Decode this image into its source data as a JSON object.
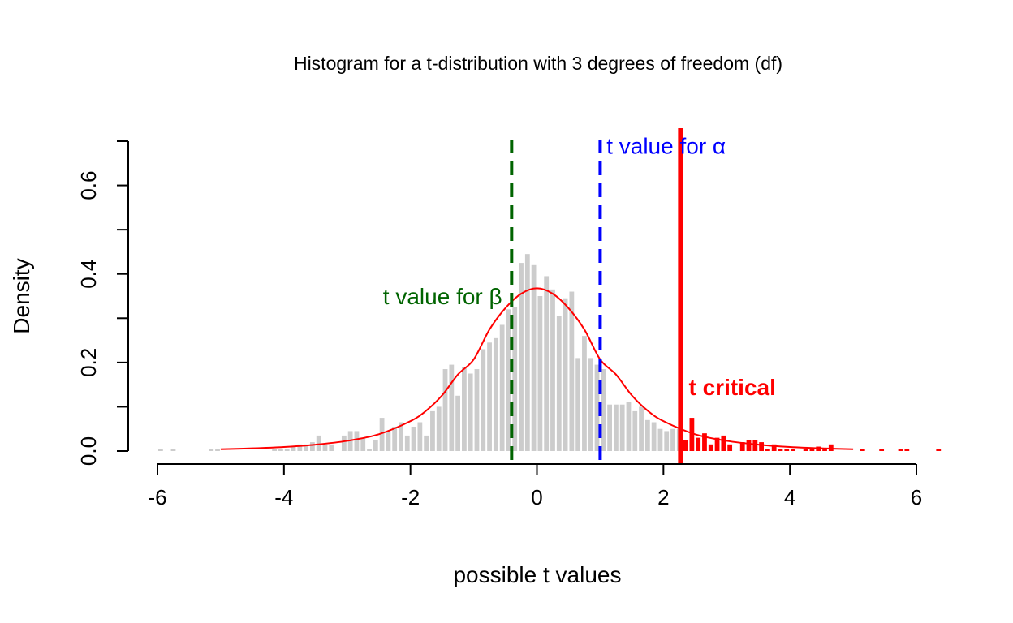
{
  "chart_data": {
    "type": "bar",
    "title": "Histogram for a t-distribution with 3 degrees of freedom (df)",
    "xlabel": "possible t values",
    "ylabel": "Density",
    "xlim": [
      -6.5,
      6.5
    ],
    "ylim": [
      0,
      0.7
    ],
    "xticks": [
      -6,
      -4,
      -2,
      0,
      2,
      4,
      6
    ],
    "xtick_labels": [
      "-6",
      "-4",
      "-2",
      "0",
      "2",
      "4",
      "6"
    ],
    "yticks": [
      0.0,
      0.1,
      0.2,
      0.3,
      0.4,
      0.5,
      0.6,
      0.7
    ],
    "ytick_labels": [
      "0.0",
      "",
      "0.2",
      "",
      "0.4",
      "",
      "0.6",
      ""
    ],
    "grid": false,
    "bin_width": 0.1,
    "colors": {
      "bars": "#cccccc",
      "bars_critical": "#ff0000",
      "density_curve": "#ff0000",
      "beta_line": "#006400",
      "alpha_line": "#0000ff",
      "critical_line": "#ff0000"
    },
    "histogram": {
      "bin_starts": [
        -6.0,
        -5.9,
        -5.8,
        -5.7,
        -5.6,
        -5.5,
        -5.4,
        -5.3,
        -5.2,
        -5.1,
        -5.0,
        -4.9,
        -4.8,
        -4.7,
        -4.6,
        -4.5,
        -4.4,
        -4.3,
        -4.2,
        -4.1,
        -4.0,
        -3.9,
        -3.8,
        -3.7,
        -3.6,
        -3.5,
        -3.4,
        -3.3,
        -3.2,
        -3.1,
        -3.0,
        -2.9,
        -2.8,
        -2.7,
        -2.6,
        -2.5,
        -2.4,
        -2.3,
        -2.2,
        -2.1,
        -2.0,
        -1.9,
        -1.8,
        -1.7,
        -1.6,
        -1.5,
        -1.4,
        -1.3,
        -1.2,
        -1.1,
        -1.0,
        -0.9,
        -0.8,
        -0.7,
        -0.6,
        -0.5,
        -0.4,
        -0.3,
        -0.2,
        -0.1,
        0.0,
        0.1,
        0.2,
        0.3,
        0.4,
        0.5,
        0.6,
        0.7,
        0.8,
        0.9,
        1.0,
        1.1,
        1.2,
        1.3,
        1.4,
        1.5,
        1.6,
        1.7,
        1.8,
        1.9,
        2.0,
        2.1,
        2.2,
        2.3,
        2.4,
        2.5,
        2.6,
        2.7,
        2.8,
        2.9,
        3.0,
        3.1,
        3.2,
        3.3,
        3.4,
        3.5,
        3.6,
        3.7,
        3.8,
        3.9,
        4.0,
        4.1,
        4.2,
        4.3,
        4.4,
        4.5,
        4.6,
        4.7,
        4.8,
        4.9,
        5.0,
        5.1,
        5.2,
        5.3,
        5.4,
        5.5,
        5.6,
        5.7,
        5.8,
        5.9,
        6.0,
        6.1,
        6.2,
        6.3,
        6.4
      ],
      "density": [
        0.005,
        0.0,
        0.005,
        0.0,
        0.0,
        0.0,
        0.0,
        0.0,
        0.005,
        0.005,
        0.0,
        0.0,
        0.0,
        0.0,
        0.0,
        0.0,
        0.0,
        0.0,
        0.005,
        0.005,
        0.005,
        0.01,
        0.015,
        0.015,
        0.02,
        0.035,
        0.015,
        0.015,
        0.0,
        0.035,
        0.045,
        0.045,
        0.03,
        0.005,
        0.025,
        0.075,
        0.045,
        0.055,
        0.065,
        0.035,
        0.055,
        0.065,
        0.035,
        0.09,
        0.1,
        0.185,
        0.195,
        0.125,
        0.19,
        0.175,
        0.185,
        0.23,
        0.245,
        0.255,
        0.285,
        0.32,
        0.325,
        0.425,
        0.445,
        0.42,
        0.35,
        0.395,
        0.365,
        0.305,
        0.345,
        0.36,
        0.21,
        0.26,
        0.21,
        0.195,
        0.185,
        0.105,
        0.105,
        0.105,
        0.11,
        0.09,
        0.1,
        0.07,
        0.065,
        0.05,
        0.045,
        0.05,
        0.05,
        0.025,
        0.075,
        0.03,
        0.04,
        0.015,
        0.03,
        0.035,
        0.015,
        0.0,
        0.02,
        0.025,
        0.025,
        0.02,
        0.005,
        0.015,
        0.005,
        0.005,
        0.005,
        0.0,
        0.005,
        0.005,
        0.01,
        0.005,
        0.015,
        0.0,
        0.0,
        0.0,
        0.0,
        0.005,
        0.0,
        0.0,
        0.005,
        0.0,
        0.0,
        0.005,
        0.005,
        0.0,
        0.0,
        0.0,
        0.0,
        0.005,
        0.0
      ]
    },
    "density_curve": {
      "x": [
        -5.0,
        -4.5,
        -4.0,
        -3.5,
        -3.0,
        -2.5,
        -2.0,
        -1.75,
        -1.5,
        -1.25,
        -1.0,
        -0.75,
        -0.5,
        -0.25,
        0.0,
        0.25,
        0.5,
        0.75,
        1.0,
        1.25,
        1.5,
        1.75,
        2.0,
        2.5,
        3.0,
        3.5,
        4.0,
        4.5,
        5.0
      ],
      "y": [
        0.0042,
        0.0061,
        0.0092,
        0.0145,
        0.023,
        0.0379,
        0.0675,
        0.0913,
        0.1257,
        0.1728,
        0.2067,
        0.2745,
        0.3226,
        0.3553,
        0.3676,
        0.3553,
        0.3226,
        0.2745,
        0.2067,
        0.1728,
        0.1257,
        0.0913,
        0.0675,
        0.0379,
        0.023,
        0.0145,
        0.0092,
        0.0061,
        0.0042
      ]
    },
    "vertical_lines": [
      {
        "name": "beta",
        "x": -0.4,
        "style": "dashed",
        "label": "t value for β",
        "label_x": -0.55,
        "label_y": 0.35
      },
      {
        "name": "alpha",
        "x": 1.0,
        "style": "dashed",
        "label": "t value for α",
        "label_x": 1.1,
        "label_y": 0.69
      },
      {
        "name": "critical",
        "x": 2.27,
        "style": "solid",
        "label": "t critical",
        "label_x": 2.4,
        "label_y": 0.145
      }
    ]
  }
}
